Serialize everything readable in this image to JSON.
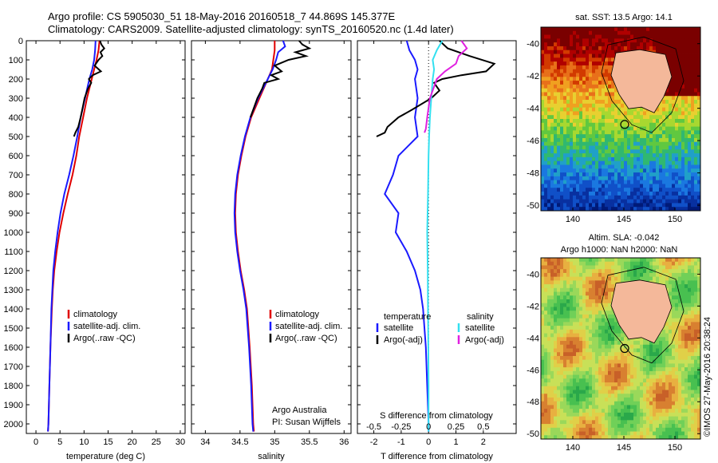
{
  "header": {
    "line1": "Argo profile: CS 5905030_51 18-May-2016 20160518_7 44.869S 145.377E",
    "line2": "Climatology: CARS2009. Satellite-adjusted climatology: synTS_20160520.nc (1.4d later)"
  },
  "stamp": "©IMOS 27-May-2016 20:38:24",
  "colors": {
    "climatology": "#e00000",
    "satellite": "#1a1aff",
    "argo": "#000000",
    "sal_satellite": "#33e0f0",
    "sal_argo": "#e020e0",
    "coast": "#f4b89a"
  },
  "chart_data": [
    {
      "type": "line",
      "xlabel": "temperature (deg C)",
      "ylim": [
        2050,
        0
      ],
      "xlim": [
        -2,
        31
      ],
      "xticks": [
        "0",
        "5",
        "10",
        "15",
        "20",
        "25",
        "30"
      ],
      "yticks": [
        "0",
        "100",
        "200",
        "300",
        "400",
        "500",
        "600",
        "700",
        "800",
        "900",
        "1000",
        "1100",
        "1200",
        "1300",
        "1400",
        "1500",
        "1600",
        "1700",
        "1800",
        "1900",
        "2000"
      ],
      "legend": [
        "climatology",
        "satellite-adj. clim.",
        "Argo(..raw -QC)"
      ],
      "series": [
        {
          "name": "climatology",
          "y": [
            0,
            50,
            100,
            150,
            200,
            300,
            400,
            500,
            600,
            700,
            800,
            900,
            1000,
            1100,
            1200,
            1300,
            1400,
            1600,
            1800,
            2000,
            2040
          ],
          "x": [
            13.2,
            13.0,
            12.6,
            12.1,
            11.6,
            10.6,
            9.8,
            9.0,
            8.4,
            7.6,
            6.6,
            5.7,
            4.9,
            4.3,
            3.8,
            3.5,
            3.3,
            3.0,
            2.8,
            2.6,
            2.5
          ]
        },
        {
          "name": "satellite-adj. clim.",
          "y": [
            0,
            50,
            100,
            150,
            200,
            300,
            400,
            500,
            600,
            700,
            800,
            900,
            1000,
            1100,
            1200,
            1300,
            1400,
            1600,
            1800,
            2000,
            2040
          ],
          "x": [
            12.4,
            12.3,
            12.1,
            11.7,
            11.1,
            10.2,
            9.3,
            8.6,
            7.8,
            6.9,
            5.9,
            5.1,
            4.5,
            4.0,
            3.6,
            3.4,
            3.2,
            3.0,
            2.8,
            2.6,
            2.5
          ]
        },
        {
          "name": "Argo(..raw -QC)",
          "y": [
            0,
            20,
            40,
            60,
            80,
            100,
            130,
            160,
            180,
            200,
            220,
            250,
            300,
            350,
            400,
            450,
            480,
            500
          ],
          "x": [
            13.3,
            13.6,
            14.2,
            13.4,
            13.8,
            13.0,
            12.2,
            13.5,
            11.8,
            11.0,
            11.5,
            10.8,
            10.1,
            9.7,
            9.3,
            8.8,
            8.2,
            7.9
          ]
        }
      ]
    },
    {
      "type": "line",
      "xlabel": "salinity",
      "ylim": [
        2050,
        0
      ],
      "xlim": [
        33.8,
        36.1
      ],
      "xticks": [
        "34",
        "34.5",
        "35",
        "35.5",
        "36"
      ],
      "legend": [
        "climatology",
        "satellite-adj. clim.",
        "Argo(..raw -QC)"
      ],
      "annotations": [
        "Argo Australia",
        "PI: Susan Wijffels"
      ],
      "series": [
        {
          "name": "climatology",
          "y": [
            0,
            50,
            100,
            150,
            200,
            300,
            400,
            500,
            600,
            700,
            800,
            900,
            1000,
            1100,
            1200,
            1300,
            1400,
            1600,
            1800,
            2000,
            2040
          ],
          "x": [
            35.0,
            35.0,
            34.98,
            34.96,
            34.9,
            34.78,
            34.66,
            34.58,
            34.52,
            34.47,
            34.44,
            34.43,
            34.44,
            34.47,
            34.51,
            34.56,
            34.6,
            34.64,
            34.67,
            34.69,
            34.7
          ]
        },
        {
          "name": "satellite-adj. clim.",
          "y": [
            0,
            30,
            60,
            100,
            150,
            200,
            300,
            400,
            500,
            600,
            700,
            800,
            900,
            1000,
            1100,
            1200,
            1300,
            1400,
            1600,
            1800,
            2000,
            2040
          ],
          "x": [
            35.12,
            35.15,
            35.05,
            35.02,
            34.97,
            34.9,
            34.76,
            34.65,
            34.57,
            34.51,
            34.46,
            34.43,
            34.42,
            34.43,
            34.46,
            34.5,
            34.55,
            34.59,
            34.63,
            34.66,
            34.68,
            34.69
          ]
        },
        {
          "name": "Argo(..raw -QC)",
          "y": [
            0,
            20,
            40,
            60,
            80,
            100,
            130,
            160,
            180,
            200,
            220,
            250,
            300,
            350,
            400
          ],
          "x": [
            35.35,
            35.4,
            35.5,
            35.3,
            35.45,
            35.2,
            35.0,
            35.1,
            34.95,
            35.05,
            34.85,
            34.82,
            34.75,
            34.7,
            34.65
          ]
        }
      ]
    },
    {
      "type": "line",
      "xlabel": "T difference from climatology",
      "xlabel_top": "S difference from climatology",
      "ylim": [
        2050,
        0
      ],
      "xlim": [
        -2.6,
        3.2
      ],
      "xticks": [
        "-2",
        "-1",
        "0",
        "1",
        "2"
      ],
      "xticks_top": [
        "-0.5",
        "-0.25",
        "0",
        "0.25",
        "0.5"
      ],
      "legend_headers": [
        "temperature",
        "salinity"
      ],
      "legend": [
        "satellite",
        "Argo(-adj)",
        "satellite",
        "Argo(-adj)"
      ],
      "series": [
        {
          "name": "satellite",
          "y": [
            0,
            50,
            100,
            150,
            200,
            300,
            400,
            500,
            600,
            700,
            800,
            900,
            1000,
            1100,
            1200,
            1300,
            1400,
            1600,
            1800,
            2000,
            2040
          ],
          "x": [
            -0.8,
            -0.7,
            -0.5,
            -0.4,
            -0.5,
            -0.4,
            -0.5,
            -0.4,
            -1.1,
            -1.3,
            -1.6,
            -1.1,
            -1.2,
            -0.8,
            -0.5,
            -0.3,
            -0.2,
            -0.1,
            -0.05,
            0.0,
            0.0
          ]
        },
        {
          "name": "Argo(-adj)",
          "y": [
            0,
            40,
            80,
            120,
            160,
            180,
            200,
            220,
            260,
            300,
            360,
            400,
            450,
            480,
            500
          ],
          "x": [
            0.4,
            0.7,
            1.5,
            2.4,
            2.1,
            1.2,
            0.5,
            0.2,
            0.4,
            0.1,
            -0.6,
            -1.1,
            -1.5,
            -1.6,
            -1.9
          ]
        },
        {
          "name": "satellite",
          "y": [
            0,
            50,
            100,
            150,
            200,
            300,
            400,
            500,
            600,
            800,
            1000,
            1200,
            1400,
            1600,
            1800,
            2000,
            2040
          ],
          "x": [
            0.5,
            0.3,
            0.15,
            0.2,
            0.15,
            0.1,
            0.05,
            0.02,
            0.0,
            -0.02,
            -0.05,
            -0.03,
            -0.02,
            -0.01,
            0.0,
            0.0,
            0.0
          ]
        },
        {
          "name": "Argo(-adj)",
          "y": [
            0,
            40,
            80,
            120,
            160,
            200,
            240,
            300,
            400,
            460,
            480
          ],
          "x": [
            1.2,
            1.4,
            1.1,
            1.0,
            0.6,
            0.3,
            0.2,
            0.05,
            -0.05,
            -0.1,
            -0.15
          ]
        }
      ]
    },
    {
      "type": "heatmap",
      "title": "sat. SST: 13.5 Argo: 14.1",
      "xticks": [
        "140",
        "145",
        "150"
      ],
      "yticks": [
        "-40",
        "-42",
        "-44",
        "-46",
        "-48",
        "-50"
      ],
      "marker": {
        "lon": 145.377,
        "lat": -44.869
      }
    },
    {
      "type": "heatmap",
      "title": "Altim. SLA: -0.042",
      "subtitle": "Argo h1000: NaN h2000: NaN",
      "xticks": [
        "140",
        "145",
        "150"
      ],
      "yticks": [
        "-40",
        "-42",
        "-44",
        "-46",
        "-48",
        "-50"
      ],
      "marker": {
        "lon": 145.377,
        "lat": -44.869
      }
    }
  ]
}
